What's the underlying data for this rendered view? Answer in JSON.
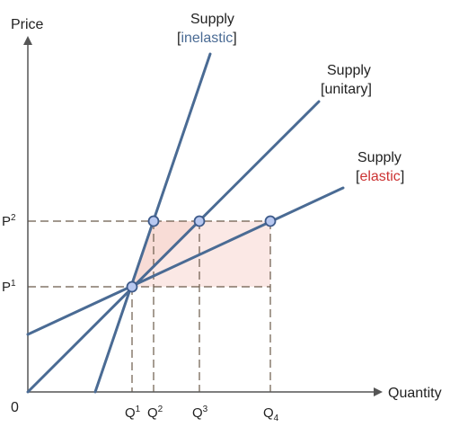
{
  "axes": {
    "y_label": "Price",
    "x_label": "Quantity",
    "origin_label": "0"
  },
  "price_levels": [
    {
      "base": "P",
      "sup": "2"
    },
    {
      "base": "P",
      "sup": "1"
    }
  ],
  "quantity_ticks": [
    {
      "base": "Q",
      "sup": "1",
      "sub": ""
    },
    {
      "base": "Q",
      "sup": "2",
      "sub": ""
    },
    {
      "base": "Q",
      "sup": "3",
      "sub": ""
    },
    {
      "base": "Q",
      "sup": "",
      "sub": "4"
    }
  ],
  "curves": [
    {
      "name": "Supply",
      "qualifier": "inelastic",
      "qualifier_color": "#4a6b94"
    },
    {
      "name": "Supply",
      "qualifier": "unitary",
      "qualifier_color": "#222222"
    },
    {
      "name": "Supply",
      "qualifier": "elastic",
      "qualifier_color": "#cc3333"
    }
  ],
  "colors": {
    "axis": "#555555",
    "curve": "#4a6b94",
    "guide": "#6b5a4a",
    "point_fill": "#b8c8f0",
    "shade": "#f7d6cf"
  }
}
